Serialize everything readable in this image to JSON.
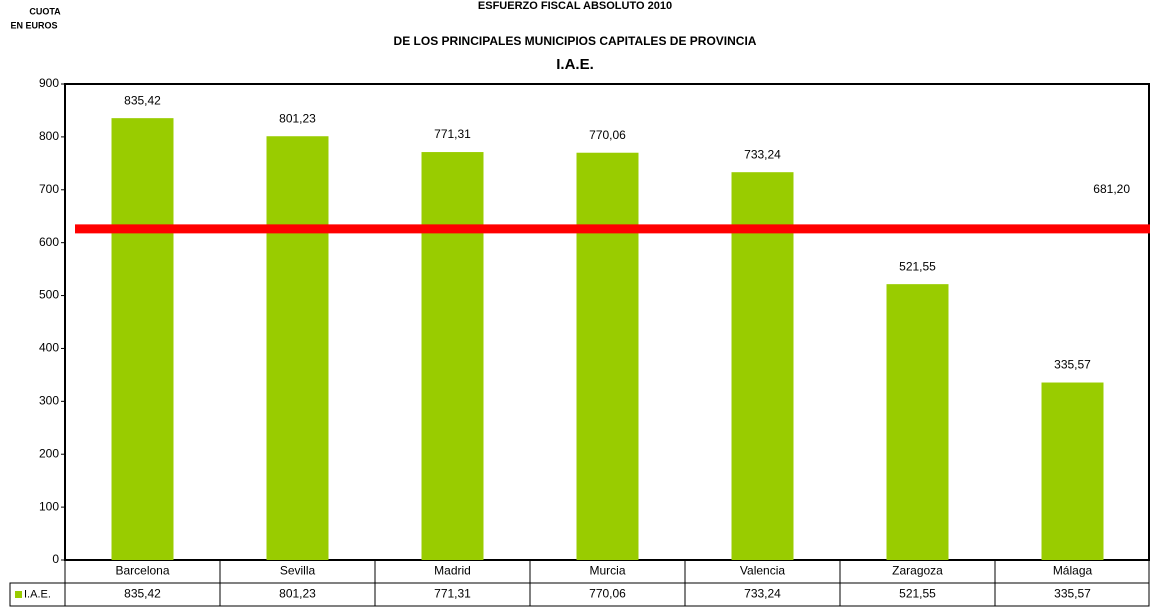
{
  "chart_data": {
    "type": "bar",
    "title": "ESFUERZO FISCAL ABSOLUTO 2010",
    "subtitle": "DE LOS PRINCIPALES MUNICIPIOS CAPITALES DE PROVINCIA",
    "subtitle2": "I.A.E.",
    "y_label": [
      "CUOTA",
      "EN EUROS"
    ],
    "categories": [
      "Barcelona",
      "Sevilla",
      "Madrid",
      "Murcia",
      "Valencia",
      "Zaragoza",
      "Málaga"
    ],
    "series": [
      {
        "name": "I.A.E.",
        "color": "#99cc00",
        "values": [
          835.42,
          801.23,
          771.31,
          770.06,
          733.24,
          521.55,
          335.57
        ],
        "value_labels": [
          "835,42",
          "801,23",
          "771,31",
          "770,06",
          "733,24",
          "521,55",
          "335,57"
        ]
      }
    ],
    "reference_line": {
      "value": 626,
      "color": "#ff0000"
    },
    "average_label": {
      "value": 681.2,
      "label": "681,20"
    },
    "ylim": [
      0,
      900
    ],
    "yticks": [
      0,
      100,
      200,
      300,
      400,
      500,
      600,
      700,
      800,
      900
    ]
  }
}
